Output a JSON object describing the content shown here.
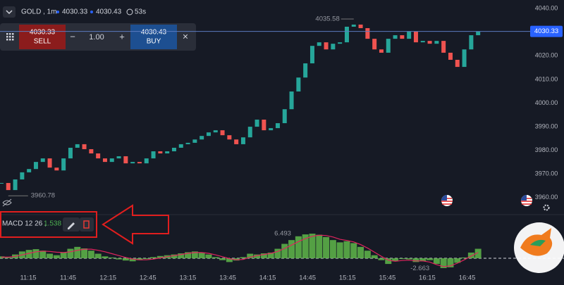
{
  "ui": {
    "symbol": "GOLD , 1m",
    "bid": 4030.33,
    "ask": 4030.43,
    "timer": "53s",
    "sell_price": 4030.33,
    "sell_label": "SELL",
    "minus": "−",
    "lot": "1.00",
    "plus": "+",
    "buy_price": 4030.43,
    "buy_label": "BUY",
    "close": "×"
  },
  "chart_data": [
    {
      "type": "candlestick",
      "values": [
        3966.2,
        3963.2,
        3967.7,
        3970.7,
        3972.1,
        3975.1,
        3976.6,
        3972.7,
        3971.5,
        3976.6,
        3981.1,
        3982.6,
        3980.5,
        3978.7,
        3976.6,
        3975.1,
        3976.6,
        3977.5,
        3974.5,
        3975.1,
        3974.5,
        3976.6,
        3979.6,
        3978.7,
        3979.6,
        3981.1,
        3982.6,
        3983.2,
        3984.6,
        3986.1,
        3987.6,
        3988.5,
        3986.4,
        3984.6,
        3982.6,
        3985.5,
        3990.0,
        3993.0,
        3988.5,
        3989.4,
        3991.5,
        3997.4,
        4004.9,
        4010.8,
        4016.8,
        4024.2,
        4025.7,
        4022.7,
        4025.1,
        4025.7,
        4032.3,
        4033.2,
        4031.7,
        4027.2,
        4022.7,
        4021.3,
        4027.2,
        4028.7,
        4027.2,
        4030.2,
        4025.7,
        4026.3,
        4025.1,
        4026.3,
        4021.3,
        4018.3,
        4015.3,
        4022.7,
        4028.7,
        4030.3
      ],
      "up_color": "#26a69a",
      "down_color": "#ef5350",
      "xlim": [
        -0.2,
        75.82
      ],
      "xticks": [
        {
          "value": 3.88,
          "label": "11:15"
        },
        {
          "value": 9.65,
          "label": "11:45"
        },
        {
          "value": 15.43,
          "label": "12:15"
        },
        {
          "value": 21.2,
          "label": "12:45"
        },
        {
          "value": 26.98,
          "label": "13:15"
        },
        {
          "value": 32.76,
          "label": "13:45"
        },
        {
          "value": 38.53,
          "label": "14:15"
        },
        {
          "value": 44.31,
          "label": "14:45"
        },
        {
          "value": 50.08,
          "label": "15:15"
        },
        {
          "value": 55.86,
          "label": "15:45"
        },
        {
          "value": 61.63,
          "label": "16:15"
        },
        {
          "value": 67.41,
          "label": "16:45"
        }
      ],
      "ylim": [
        3954.3,
        4043.6
      ],
      "yticks": [
        {
          "value": 3960,
          "label": "3960.00"
        },
        {
          "value": 3970,
          "label": "3970.00"
        },
        {
          "value": 3980,
          "label": "3980.00"
        },
        {
          "value": 3990,
          "label": "3990.00"
        },
        {
          "value": 4000,
          "label": "4000.00"
        },
        {
          "value": 4010,
          "label": "4010.00"
        },
        {
          "value": 4020,
          "label": "4020.00"
        },
        {
          "value": 4030,
          "label": "4030.00"
        },
        {
          "value": 4040,
          "label": "4040.00"
        }
      ],
      "last_price": 4030.33,
      "high": 4035.58,
      "low": 3960.78
    },
    {
      "type": "macd",
      "label": "MACD 12  26 ,",
      "value_text": "1.538",
      "histogram": [
        0.5,
        0.2,
        1.0,
        1.8,
        2.2,
        2.4,
        2.0,
        1.2,
        0.8,
        1.5,
        2.5,
        3.0,
        2.6,
        2.0,
        1.2,
        0.5,
        0.2,
        -0.3,
        -0.6,
        -0.8,
        -0.5,
        -0.2,
        0.3,
        0.6,
        0.8,
        1.0,
        1.3,
        1.6,
        1.8,
        1.5,
        1.0,
        0.3,
        -0.5,
        -1.0,
        -0.6,
        0.3,
        1.2,
        1.0,
        1.3,
        1.5,
        2.5,
        3.8,
        4.8,
        5.8,
        6.3,
        6.5,
        6.2,
        5.6,
        4.8,
        4.2,
        4.5,
        4.0,
        3.0,
        2.0,
        0.8,
        -0.5,
        -1.5,
        -0.8,
        -0.2,
        -0.3,
        -1.0,
        -0.8,
        -0.5,
        -1.5,
        -2.6,
        -2.4,
        -1.2,
        0.2,
        1.5,
        2.5
      ],
      "signal": [
        0.3,
        0.3,
        0.5,
        0.9,
        1.3,
        1.7,
        1.9,
        1.8,
        1.6,
        1.5,
        1.7,
        2.1,
        2.4,
        2.4,
        2.1,
        1.7,
        1.2,
        0.7,
        0.2,
        -0.2,
        -0.4,
        -0.4,
        -0.2,
        0.1,
        0.4,
        0.7,
        1.0,
        1.3,
        1.5,
        1.5,
        1.3,
        0.9,
        0.4,
        -0.1,
        -0.4,
        -0.3,
        0.3,
        0.7,
        1.0,
        1.3,
        1.8,
        2.6,
        3.5,
        4.4,
        5.2,
        5.8,
        6.1,
        6.0,
        5.6,
        5.0,
        4.7,
        4.3,
        3.6,
        2.7,
        1.6,
        0.5,
        -0.5,
        -0.8,
        -0.6,
        -0.5,
        -0.7,
        -0.7,
        -1.0,
        -1.7,
        -2.2,
        -2.0,
        -1.3,
        -0.4,
        0.6,
        1.5
      ],
      "histogram_color": "#5fb84a",
      "signal_color": "#e0245e",
      "ylim": [
        -3.9,
        9.1
      ],
      "max": 6.493,
      "min": -2.663
    }
  ]
}
